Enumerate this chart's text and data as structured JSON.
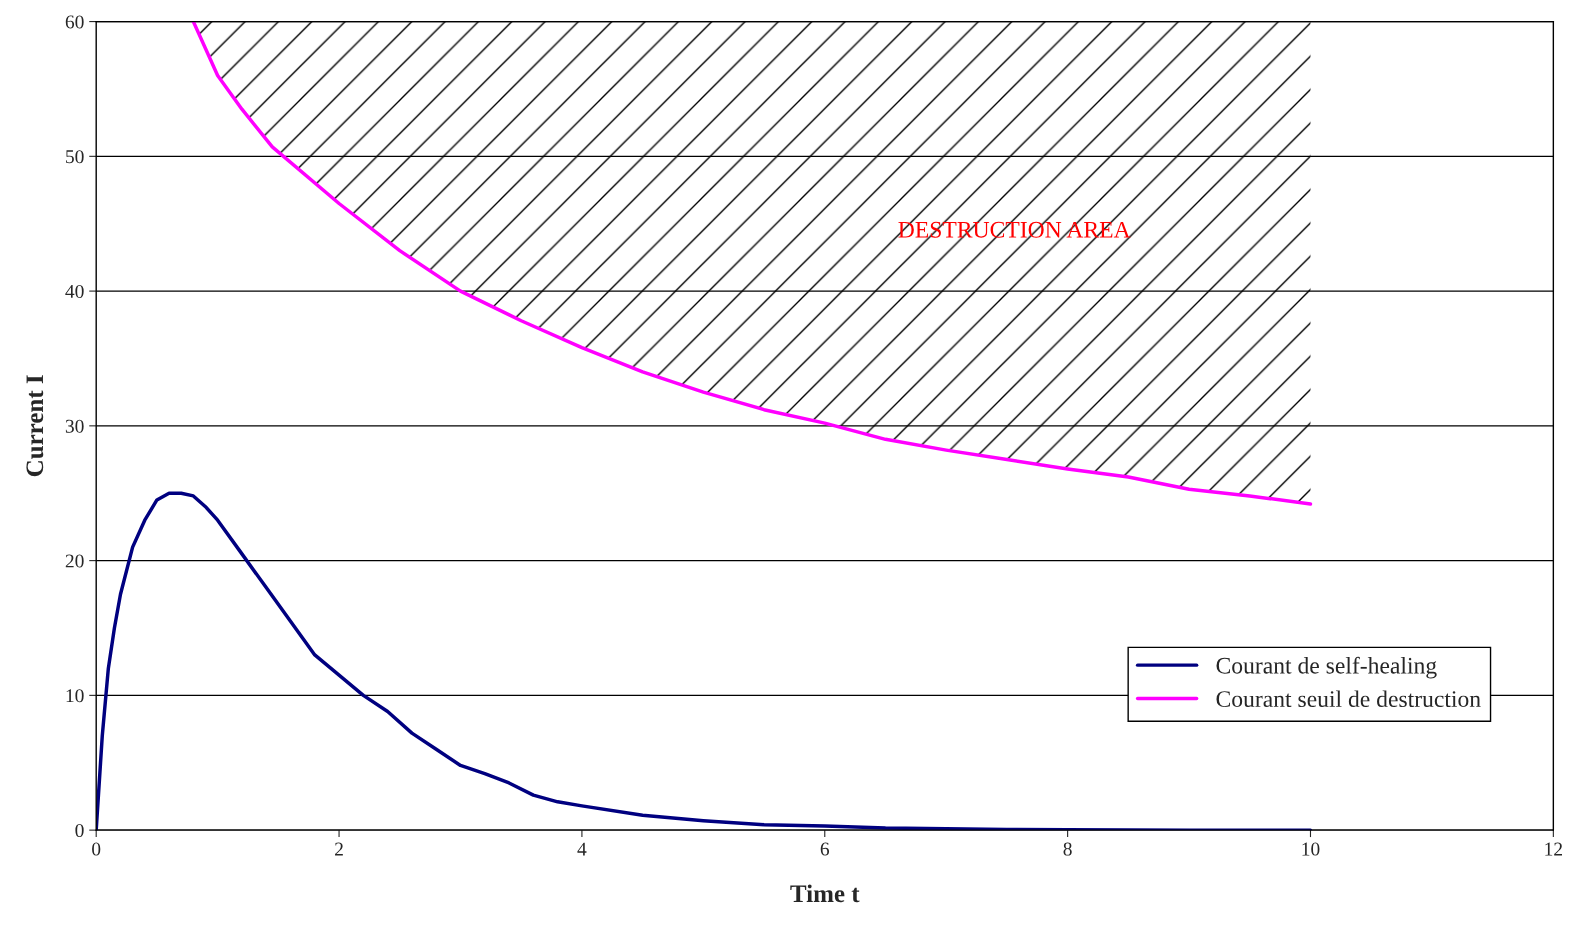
{
  "chart_data": {
    "type": "line",
    "xlabel": "Time t",
    "ylabel": "Current I",
    "series": [
      {
        "name": "Courant de self-healing",
        "color": "#000080",
        "x": [
          0,
          0.05,
          0.1,
          0.15,
          0.2,
          0.3,
          0.4,
          0.5,
          0.6,
          0.7,
          0.8,
          0.9,
          1.0,
          1.2,
          1.4,
          1.6,
          1.8,
          2.0,
          2.2,
          2.4,
          2.6,
          2.8,
          3.0,
          3.2,
          3.4,
          3.6,
          3.8,
          4.0,
          4.5,
          5,
          5.5,
          6,
          6.5,
          7,
          7.5,
          8,
          9,
          10
        ],
        "values": [
          0,
          7,
          12,
          15,
          17.5,
          21,
          23,
          24.5,
          25,
          25,
          24.8,
          24,
          23,
          20.5,
          18,
          15.5,
          13,
          11.5,
          10,
          8.8,
          7.2,
          6,
          4.8,
          4.2,
          3.5,
          2.6,
          2.1,
          1.8,
          1.1,
          0.7,
          0.4,
          0.3,
          0.15,
          0.1,
          0.05,
          0.02,
          0,
          0
        ]
      },
      {
        "name": "Courant seuil de destruction",
        "color": "#ff00ff",
        "x": [
          0.8,
          0.9,
          1.0,
          1.2,
          1.45,
          2.0,
          2.5,
          3.0,
          3.5,
          4.0,
          4.5,
          5.0,
          5.5,
          6.0,
          6.5,
          7.0,
          7.5,
          8.0,
          8.5,
          9.0,
          9.5,
          10.0
        ],
        "values": [
          60,
          58,
          56,
          53.5,
          50.7,
          46.5,
          43,
          40,
          37.8,
          35.8,
          34,
          32.5,
          31.2,
          30.2,
          29,
          28.2,
          27.5,
          26.8,
          26.2,
          25.3,
          24.8,
          24.2
        ]
      }
    ],
    "annotations": [
      "DESTRUCTION AREA"
    ],
    "xlim": [
      0,
      12
    ],
    "xticks": [
      0,
      2,
      4,
      6,
      8,
      10,
      12
    ],
    "ylim": [
      0,
      60
    ],
    "yticks": [
      0,
      10,
      20,
      30,
      40,
      50,
      60
    ],
    "grid": "y",
    "legend": "bottom right",
    "marker": "none",
    "line_style": "solid"
  }
}
